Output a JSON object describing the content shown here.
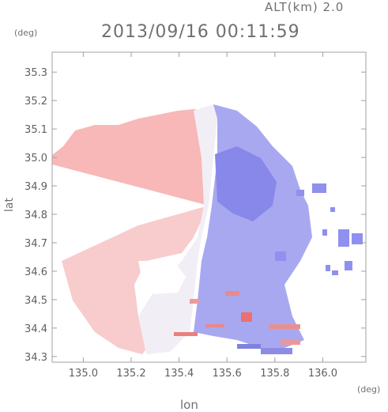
{
  "header": {
    "alt_label": "ALT(km) 2.0",
    "timestamp": "2013/09/16 00:11:59",
    "unit_y": "(deg)",
    "unit_x": "(deg)"
  },
  "chart_data": {
    "type": "heatmap",
    "title": "2013/09/16 00:11:59",
    "xlabel": "lon",
    "ylabel": "lat",
    "xlim": [
      134.87,
      136.18
    ],
    "ylim": [
      34.28,
      35.37
    ],
    "xticks": [
      "135.0",
      "135.2",
      "135.4",
      "135.6",
      "135.8",
      "136.0"
    ],
    "yticks": [
      "34.3",
      "34.4",
      "34.5",
      "34.6",
      "34.7",
      "34.8",
      "34.9",
      "35.0",
      "35.1",
      "35.2",
      "35.3"
    ],
    "grid": false,
    "radar_center": [
      135.52,
      34.82
    ],
    "colors": {
      "approaching": "#8080ee",
      "receding": "#f4a0a0",
      "neutral": "#f0f0f8",
      "axis": "#a0a0a0"
    }
  }
}
